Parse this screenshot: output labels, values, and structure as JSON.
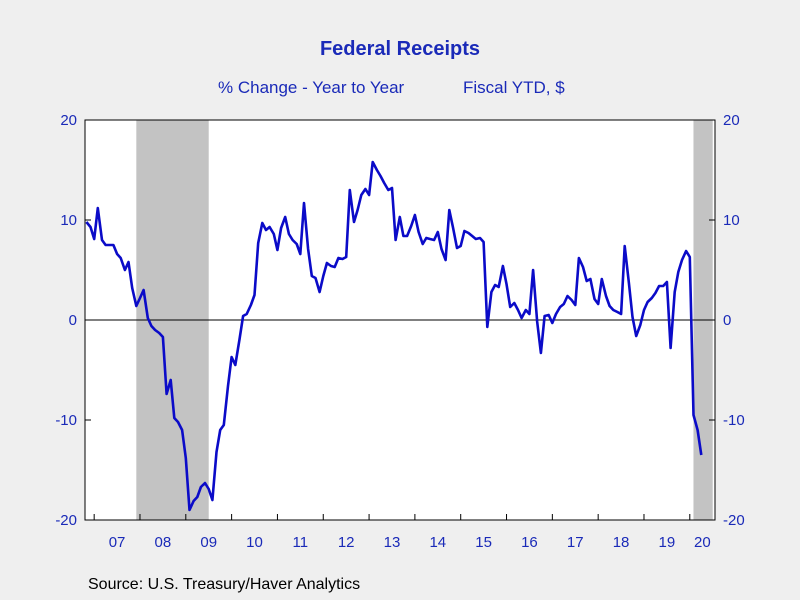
{
  "title": "Federal Receipts",
  "subtitle_left": "% Change - Year to Year",
  "subtitle_right": "Fiscal YTD, $",
  "source": "Source:  U.S. Treasury/Haver Analytics",
  "colors": {
    "line": "#0b0bc8",
    "text": "#1a2ab8",
    "recession": "#c3c3c3",
    "plot_bg": "#ffffff",
    "page_bg": "#efefef"
  },
  "chart_data": {
    "type": "line",
    "title": "Federal Receipts",
    "subtitle": "% Change - Year to Year    Fiscal YTD, $",
    "ylim": [
      -20,
      20
    ],
    "yticks": [
      20,
      10,
      0,
      -10,
      -20
    ],
    "x_tick_labels": [
      "07",
      "08",
      "09",
      "10",
      "11",
      "12",
      "13",
      "14",
      "15",
      "16",
      "17",
      "18",
      "19",
      "20"
    ],
    "grid": false,
    "zero_line": true,
    "dual_axis_same_scale": true,
    "recessions": [
      [
        2007.92,
        2009.5
      ],
      [
        2020.08,
        2020.5
      ]
    ],
    "series": [
      {
        "points": [
          [
            2006.83,
            9.8
          ],
          [
            2006.92,
            9.3
          ],
          [
            2007.0,
            8.1
          ],
          [
            2007.08,
            11.2
          ],
          [
            2007.17,
            8.0
          ],
          [
            2007.25,
            7.5
          ],
          [
            2007.33,
            7.5
          ],
          [
            2007.42,
            7.5
          ],
          [
            2007.5,
            6.6
          ],
          [
            2007.58,
            6.2
          ],
          [
            2007.67,
            5.0
          ],
          [
            2007.75,
            5.8
          ],
          [
            2007.83,
            3.2
          ],
          [
            2007.92,
            1.4
          ],
          [
            2008.0,
            2.2
          ],
          [
            2008.08,
            3.0
          ],
          [
            2008.17,
            0.2
          ],
          [
            2008.25,
            -0.6
          ],
          [
            2008.33,
            -1.0
          ],
          [
            2008.42,
            -1.3
          ],
          [
            2008.5,
            -1.7
          ],
          [
            2008.58,
            -7.4
          ],
          [
            2008.67,
            -6.0
          ],
          [
            2008.75,
            -9.8
          ],
          [
            2008.83,
            -10.2
          ],
          [
            2008.92,
            -11.0
          ],
          [
            2009.0,
            -13.8
          ],
          [
            2009.08,
            -19.0
          ],
          [
            2009.17,
            -18.1
          ],
          [
            2009.25,
            -17.7
          ],
          [
            2009.33,
            -16.7
          ],
          [
            2009.42,
            -16.3
          ],
          [
            2009.5,
            -16.9
          ],
          [
            2009.58,
            -18.0
          ],
          [
            2009.67,
            -13.2
          ],
          [
            2009.75,
            -11.0
          ],
          [
            2009.83,
            -10.5
          ],
          [
            2009.92,
            -6.6
          ],
          [
            2010.0,
            -3.7
          ],
          [
            2010.08,
            -4.5
          ],
          [
            2010.17,
            -2.0
          ],
          [
            2010.25,
            0.4
          ],
          [
            2010.33,
            0.6
          ],
          [
            2010.42,
            1.5
          ],
          [
            2010.5,
            2.5
          ],
          [
            2010.58,
            7.7
          ],
          [
            2010.67,
            9.7
          ],
          [
            2010.75,
            9.0
          ],
          [
            2010.83,
            9.3
          ],
          [
            2010.92,
            8.6
          ],
          [
            2011.0,
            7.0
          ],
          [
            2011.08,
            9.2
          ],
          [
            2011.17,
            10.3
          ],
          [
            2011.25,
            8.6
          ],
          [
            2011.33,
            8.0
          ],
          [
            2011.42,
            7.6
          ],
          [
            2011.5,
            6.6
          ],
          [
            2011.58,
            11.7
          ],
          [
            2011.67,
            7.1
          ],
          [
            2011.75,
            4.4
          ],
          [
            2011.83,
            4.2
          ],
          [
            2011.92,
            2.8
          ],
          [
            2012.0,
            4.4
          ],
          [
            2012.08,
            5.7
          ],
          [
            2012.17,
            5.4
          ],
          [
            2012.25,
            5.3
          ],
          [
            2012.33,
            6.2
          ],
          [
            2012.42,
            6.1
          ],
          [
            2012.5,
            6.3
          ],
          [
            2012.58,
            13.0
          ],
          [
            2012.67,
            9.8
          ],
          [
            2012.75,
            11.0
          ],
          [
            2012.83,
            12.5
          ],
          [
            2012.92,
            13.1
          ],
          [
            2013.0,
            12.5
          ],
          [
            2013.08,
            15.8
          ],
          [
            2013.17,
            15.0
          ],
          [
            2013.25,
            14.4
          ],
          [
            2013.33,
            13.7
          ],
          [
            2013.42,
            13.0
          ],
          [
            2013.5,
            13.2
          ],
          [
            2013.58,
            8.0
          ],
          [
            2013.67,
            10.3
          ],
          [
            2013.75,
            8.4
          ],
          [
            2013.83,
            8.4
          ],
          [
            2013.92,
            9.4
          ],
          [
            2014.0,
            10.5
          ],
          [
            2014.08,
            8.8
          ],
          [
            2014.17,
            7.6
          ],
          [
            2014.25,
            8.2
          ],
          [
            2014.33,
            8.1
          ],
          [
            2014.42,
            8.0
          ],
          [
            2014.5,
            8.8
          ],
          [
            2014.58,
            7.1
          ],
          [
            2014.67,
            6.0
          ],
          [
            2014.75,
            11.0
          ],
          [
            2014.83,
            9.3
          ],
          [
            2014.92,
            7.2
          ],
          [
            2015.0,
            7.4
          ],
          [
            2015.08,
            8.9
          ],
          [
            2015.17,
            8.7
          ],
          [
            2015.25,
            8.4
          ],
          [
            2015.33,
            8.1
          ],
          [
            2015.42,
            8.2
          ],
          [
            2015.5,
            7.8
          ],
          [
            2015.58,
            -0.7
          ],
          [
            2015.67,
            2.8
          ],
          [
            2015.75,
            3.5
          ],
          [
            2015.83,
            3.3
          ],
          [
            2015.92,
            5.4
          ],
          [
            2016.0,
            3.6
          ],
          [
            2016.08,
            1.3
          ],
          [
            2016.17,
            1.7
          ],
          [
            2016.25,
            1.0
          ],
          [
            2016.33,
            0.2
          ],
          [
            2016.42,
            1.0
          ],
          [
            2016.5,
            0.6
          ],
          [
            2016.58,
            5.0
          ],
          [
            2016.67,
            -0.2
          ],
          [
            2016.75,
            -3.3
          ],
          [
            2016.83,
            0.4
          ],
          [
            2016.92,
            0.5
          ],
          [
            2017.0,
            -0.3
          ],
          [
            2017.08,
            0.6
          ],
          [
            2017.17,
            1.3
          ],
          [
            2017.25,
            1.6
          ],
          [
            2017.33,
            2.4
          ],
          [
            2017.42,
            2.0
          ],
          [
            2017.5,
            1.5
          ],
          [
            2017.58,
            6.2
          ],
          [
            2017.67,
            5.3
          ],
          [
            2017.75,
            3.9
          ],
          [
            2017.83,
            4.1
          ],
          [
            2017.92,
            2.1
          ],
          [
            2018.0,
            1.6
          ],
          [
            2018.08,
            4.1
          ],
          [
            2018.17,
            2.4
          ],
          [
            2018.25,
            1.4
          ],
          [
            2018.33,
            1.0
          ],
          [
            2018.42,
            0.8
          ],
          [
            2018.5,
            0.6
          ],
          [
            2018.58,
            7.4
          ],
          [
            2018.67,
            3.7
          ],
          [
            2018.75,
            0.3
          ],
          [
            2018.83,
            -1.6
          ],
          [
            2018.92,
            -0.5
          ],
          [
            2019.0,
            1.0
          ],
          [
            2019.08,
            1.8
          ],
          [
            2019.17,
            2.2
          ],
          [
            2019.25,
            2.7
          ],
          [
            2019.33,
            3.4
          ],
          [
            2019.42,
            3.4
          ],
          [
            2019.5,
            3.8
          ],
          [
            2019.58,
            -2.8
          ],
          [
            2019.67,
            2.8
          ],
          [
            2019.75,
            4.8
          ],
          [
            2019.83,
            6.0
          ],
          [
            2019.92,
            6.9
          ],
          [
            2020.0,
            6.3
          ],
          [
            2020.08,
            -9.5
          ],
          [
            2020.17,
            -11.0
          ],
          [
            2020.25,
            -13.5
          ]
        ]
      }
    ]
  }
}
